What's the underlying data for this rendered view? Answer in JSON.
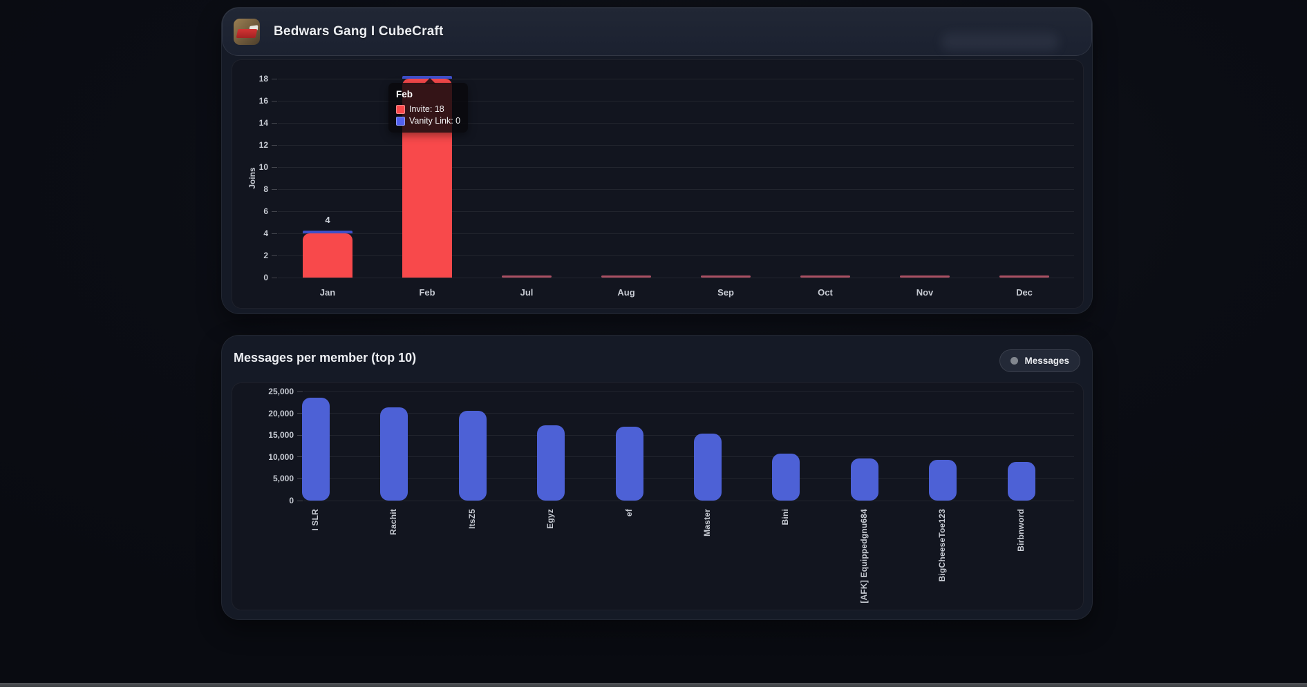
{
  "header": {
    "title": "Bedwars Gang I CubeCraft",
    "icon": "minecraft-bed-icon"
  },
  "chart_data": [
    {
      "type": "bar",
      "title": "",
      "ylabel": "Joins",
      "categories": [
        "Jan",
        "Feb",
        "Jul",
        "Aug",
        "Sep",
        "Oct",
        "Nov",
        "Dec"
      ],
      "series": [
        {
          "name": "Invite",
          "color": "#f8494b",
          "values": [
            4,
            18,
            0,
            0,
            0,
            0,
            0,
            0
          ]
        },
        {
          "name": "Vanity Link",
          "color": "#3e4fc9",
          "values": [
            0,
            0,
            0,
            0,
            0,
            0,
            0,
            0
          ]
        }
      ],
      "ylim": [
        0,
        18
      ],
      "ytick_step": 2,
      "grid": true,
      "legend_position": "none",
      "bar_value_labels": {
        "Jan": "4"
      },
      "zero_bar_color": "#c65b70",
      "hovered_category": "Feb"
    },
    {
      "type": "bar",
      "title": "Messages per member (top 10)",
      "ylabel": "",
      "categories": [
        "I SLR",
        "Rachit",
        "ItsZ5",
        "Egyz",
        "ef",
        "Master",
        "Bini",
        "[AFK] Equippedgnu684",
        "BigCheeseToe123",
        "Birbnword"
      ],
      "series": [
        {
          "name": "Messages",
          "color": "#4d61d6",
          "values": [
            23600,
            21300,
            20600,
            17300,
            16900,
            15400,
            10700,
            9700,
            9400,
            8900
          ]
        }
      ],
      "ylim": [
        0,
        25000
      ],
      "ytick_step": 5000,
      "grid": true,
      "legend_position": "top-right"
    }
  ],
  "tooltip": {
    "title": "Feb",
    "rows": [
      {
        "label": "Invite",
        "value": "18",
        "swatch_color": "#f8494b"
      },
      {
        "label": "Vanity Link",
        "value": "0",
        "swatch_color": "#5261ee"
      }
    ]
  },
  "legend": {
    "label": "Messages",
    "dot_color": "#82878f"
  }
}
